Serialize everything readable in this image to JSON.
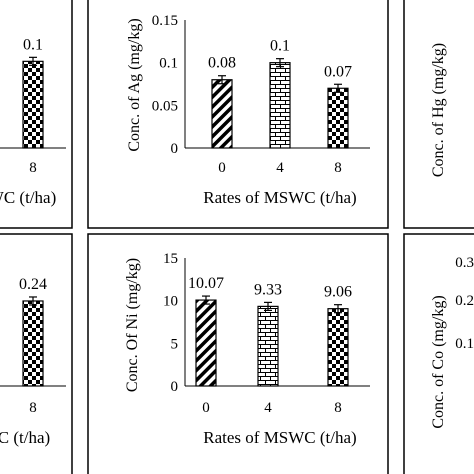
{
  "chart_data": [
    {
      "type": "bar",
      "position": "top-left (cropped)",
      "categories": [
        "8"
      ],
      "values": [
        0.1
      ],
      "data_labels": [
        "0.1"
      ],
      "xlabel": "WC (t/ha)",
      "ylabel": "",
      "ylim": [
        0,
        0.15
      ],
      "pattern": [
        "checker"
      ]
    },
    {
      "type": "bar",
      "position": "top-center",
      "categories": [
        "0",
        "4",
        "8"
      ],
      "values": [
        0.08,
        0.1,
        0.07
      ],
      "data_labels": [
        "0.08",
        "0.1",
        "0.07"
      ],
      "xlabel": "Rates of MSWC (t/ha)",
      "ylabel": "Conc. of Ag (mg/kg)",
      "ylim": [
        0,
        0.15
      ],
      "yticks": [
        "0",
        "0.05",
        "0.1",
        "0.15"
      ],
      "pattern": [
        "diagonal",
        "brick",
        "checker"
      ]
    },
    {
      "type": "bar",
      "position": "top-right (cropped)",
      "categories": [],
      "values": [],
      "xlabel": "",
      "ylabel": "Conc. of Hg (mg/kg)"
    },
    {
      "type": "bar",
      "position": "bottom-left (cropped)",
      "categories": [
        "8"
      ],
      "values": [
        0.24
      ],
      "data_labels": [
        "0.24"
      ],
      "xlabel": "C (t/ha)",
      "ylabel": "",
      "ylim": [
        0,
        0.35
      ],
      "pattern": [
        "checker"
      ]
    },
    {
      "type": "bar",
      "position": "bottom-center",
      "categories": [
        "0",
        "4",
        "8"
      ],
      "values": [
        10.07,
        9.33,
        9.06
      ],
      "data_labels": [
        "10.07",
        "9.33",
        "9.06"
      ],
      "xlabel": "Rates of MSWC (t/ha)",
      "ylabel": "Conc. Of Ni (mg/kg)",
      "ylim": [
        0,
        15
      ],
      "yticks": [
        "0",
        "5",
        "10",
        "15"
      ],
      "pattern": [
        "diagonal",
        "brick",
        "checker"
      ]
    },
    {
      "type": "bar",
      "position": "bottom-right (cropped)",
      "categories": [],
      "values": [],
      "yticks": [
        "0.1",
        "0.2",
        "0.3"
      ],
      "xlabel": "",
      "ylabel": "Conc. of Co (mg/kg)"
    }
  ]
}
